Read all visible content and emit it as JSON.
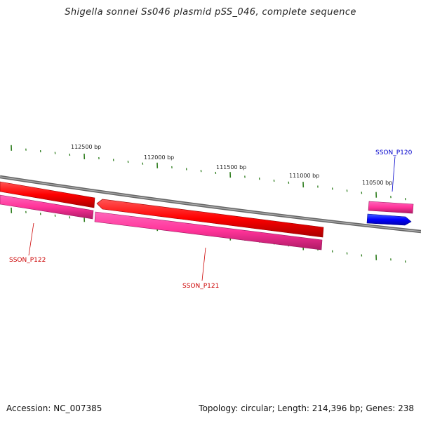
{
  "title": "Shigella sonnei Ss046 plasmid pSS_046, complete sequence",
  "footer": {
    "accession": "Accession: NC_007385",
    "summary": "Topology: circular; Length: 214,396 bp; Genes: 238"
  },
  "ruler": {
    "labels": [
      {
        "bp": 112500,
        "text": "112500 bp"
      },
      {
        "bp": 112000,
        "text": "112000 bp"
      },
      {
        "bp": 111500,
        "text": "111500 bp"
      },
      {
        "bp": 111000,
        "text": "111000 bp"
      },
      {
        "bp": 110500,
        "text": "110500 bp"
      }
    ],
    "tick_color": "#2e7d1e"
  },
  "features": [
    {
      "id": "SSON_P122",
      "label": "SSON_P122",
      "strand": "reverse",
      "color": "#ff0000",
      "cds_color": "#ff3399",
      "label_color": "#cc0000"
    },
    {
      "id": "SSON_P121",
      "label": "SSON_P121",
      "strand": "reverse",
      "color": "#ff0000",
      "cds_color": "#ff3399",
      "label_color": "#cc0000"
    },
    {
      "id": "SSON_P120",
      "label": "SSON_P120",
      "strand": "forward",
      "color": "#0000ff",
      "cds_color": "#ff3399",
      "label_color": "#0000cc"
    }
  ],
  "colors": {
    "backbone": "#888888",
    "gene_reverse": "#ff0000",
    "gene_forward": "#0000ff",
    "cds": "#ff3399",
    "ticks": "#2e7d1e"
  }
}
